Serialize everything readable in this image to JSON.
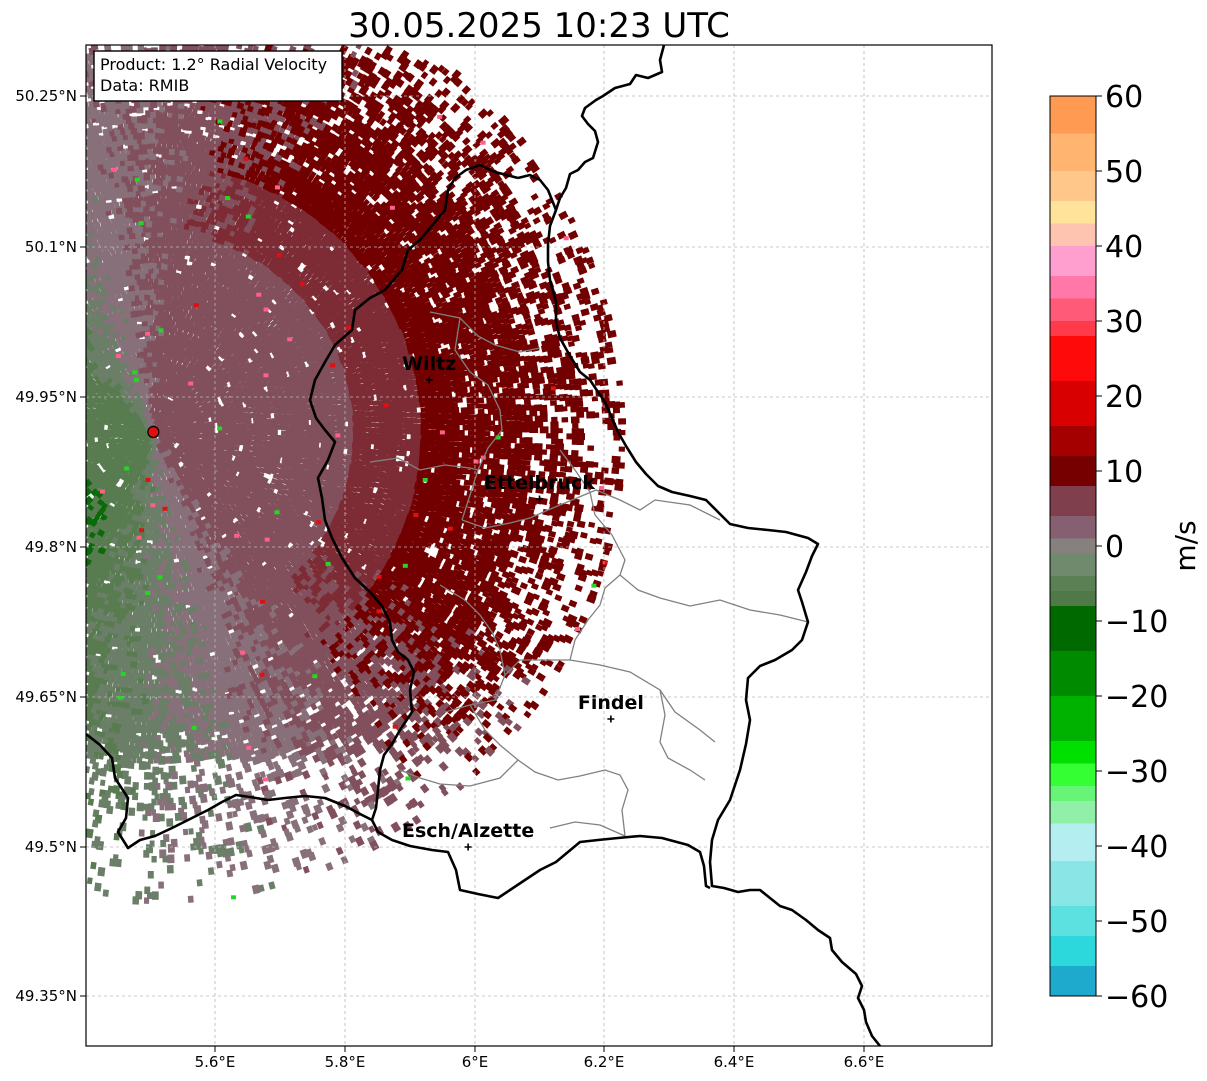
{
  "title": "30.05.2025 10:23 UTC",
  "info": {
    "product": "Product: 1.2° Radial Velocity",
    "data_source": "Data: RMIB"
  },
  "axes": {
    "lat_ticks": [
      "50.25°N",
      "50.1°N",
      "49.95°N",
      "49.8°N",
      "49.65°N",
      "49.5°N",
      "49.35°N"
    ],
    "lon_ticks": [
      "5.6°E",
      "5.8°E",
      "6°E",
      "6.2°E",
      "6.4°E",
      "6.6°E"
    ]
  },
  "cities": [
    {
      "name": "Wiltz",
      "lon": 5.93,
      "lat": 49.966
    },
    {
      "name": "Ettelbruck",
      "lon": 6.1,
      "lat": 49.847
    },
    {
      "name": "Findel",
      "lon": 6.21,
      "lat": 49.627
    },
    {
      "name": "Esch/Alzette",
      "lon": 5.99,
      "lat": 49.499
    }
  ],
  "radar_site": {
    "lon": 5.505,
    "lat": 49.914
  },
  "colorbar": {
    "unit": "m/s",
    "ticks": [
      "60",
      "50",
      "40",
      "30",
      "20",
      "10",
      "0",
      "−10",
      "−20",
      "−30",
      "−40",
      "−50",
      "−60"
    ],
    "stops": [
      {
        "v": 60,
        "c": "#ff9a52"
      },
      {
        "v": 55,
        "c": "#ffb470"
      },
      {
        "v": 50,
        "c": "#ffc88a"
      },
      {
        "v": 46,
        "c": "#ffe39a"
      },
      {
        "v": 43,
        "c": "#ffc4b0"
      },
      {
        "v": 40,
        "c": "#ff9fcf"
      },
      {
        "v": 36,
        "c": "#ff78a8"
      },
      {
        "v": 33,
        "c": "#ff5a78"
      },
      {
        "v": 30,
        "c": "#ff3a4a"
      },
      {
        "v": 28,
        "c": "#ff0a0a"
      },
      {
        "v": 22,
        "c": "#d80000"
      },
      {
        "v": 16,
        "c": "#a40000"
      },
      {
        "v": 12,
        "c": "#760000"
      },
      {
        "v": 8,
        "c": "#803f4c"
      },
      {
        "v": 4,
        "c": "#866070"
      },
      {
        "v": 1,
        "c": "#86807e"
      },
      {
        "v": -1,
        "c": "#6f8a6d"
      },
      {
        "v": -4,
        "c": "#5a8054"
      },
      {
        "v": -6,
        "c": "#4f7a48"
      },
      {
        "v": -8,
        "c": "#006a00"
      },
      {
        "v": -14,
        "c": "#008a00"
      },
      {
        "v": -20,
        "c": "#00b200"
      },
      {
        "v": -26,
        "c": "#00e000"
      },
      {
        "v": -29,
        "c": "#33ff33"
      },
      {
        "v": -32,
        "c": "#66f577"
      },
      {
        "v": -34,
        "c": "#90f0a8"
      },
      {
        "v": -37,
        "c": "#b4eef0"
      },
      {
        "v": -42,
        "c": "#8ae6e6"
      },
      {
        "v": -48,
        "c": "#5ce0e0"
      },
      {
        "v": -52,
        "c": "#2cd8dc"
      },
      {
        "v": -56,
        "c": "#1eaacc"
      },
      {
        "v": -60,
        "c": "#1f78c4"
      }
    ]
  },
  "field_colors": {
    "outbound_dark": "#730000",
    "outbound_maroon": "#7d2b34",
    "outbound_mauve": "#81505c",
    "near_zero_gray": "#88707a",
    "inbound_gray_green": "#6a7e68",
    "inbound_green": "#587c50",
    "inbound_dark_green": "#0a6a0a",
    "speckle_green": "#22d822",
    "speckle_pink": "#ff5f8a",
    "speckle_red": "#e01010"
  },
  "boundary_colors": {
    "country": "#000000",
    "canton": "#808080",
    "grid": "#b8b8b8"
  }
}
